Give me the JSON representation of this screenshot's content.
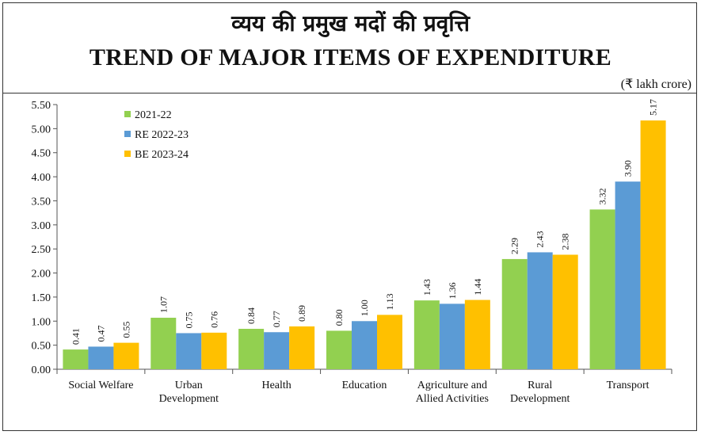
{
  "title_hindi": "व्यय की प्रमुख मदों की प्रवृत्ति",
  "title_english": "TREND OF MAJOR ITEMS OF EXPENDITURE",
  "unit_label": "(₹ lakh crore)",
  "chart_data": {
    "type": "bar",
    "title": "TREND OF MAJOR ITEMS OF EXPENDITURE",
    "ylabel": "₹ lakh crore",
    "ylim": [
      0,
      5.5
    ],
    "yticks": [
      "0.00",
      "0.50",
      "1.00",
      "1.50",
      "2.00",
      "2.50",
      "3.00",
      "3.50",
      "4.00",
      "4.50",
      "5.00",
      "5.50"
    ],
    "categories": [
      [
        "Social Welfare"
      ],
      [
        "Urban",
        "Development"
      ],
      [
        "Health"
      ],
      [
        "Education"
      ],
      [
        "Agriculture and",
        "Allied Activities"
      ],
      [
        "Rural",
        "Development"
      ],
      [
        "Transport"
      ]
    ],
    "series": [
      {
        "name": "2021-22",
        "color": "#92d050",
        "values": [
          0.41,
          1.07,
          0.84,
          0.8,
          1.43,
          2.29,
          3.32
        ],
        "labels": [
          "0.41",
          "1.07",
          "0.84",
          "0.80",
          "1.43",
          "2.29",
          "3.32"
        ]
      },
      {
        "name": "RE 2022-23",
        "color": "#5b9bd5",
        "values": [
          0.47,
          0.75,
          0.77,
          1.0,
          1.36,
          2.43,
          3.9
        ],
        "labels": [
          "0.47",
          "0.75",
          "0.77",
          "1.00",
          "1.36",
          "2.43",
          "3.90"
        ]
      },
      {
        "name": "BE 2023-24",
        "color": "#ffc000",
        "values": [
          0.55,
          0.76,
          0.89,
          1.13,
          1.44,
          2.38,
          5.17
        ],
        "labels": [
          "0.55",
          "0.76",
          "0.89",
          "1.13",
          "1.44",
          "2.38",
          "5.17"
        ]
      }
    ],
    "legend_position": "top-left",
    "grid": false
  }
}
